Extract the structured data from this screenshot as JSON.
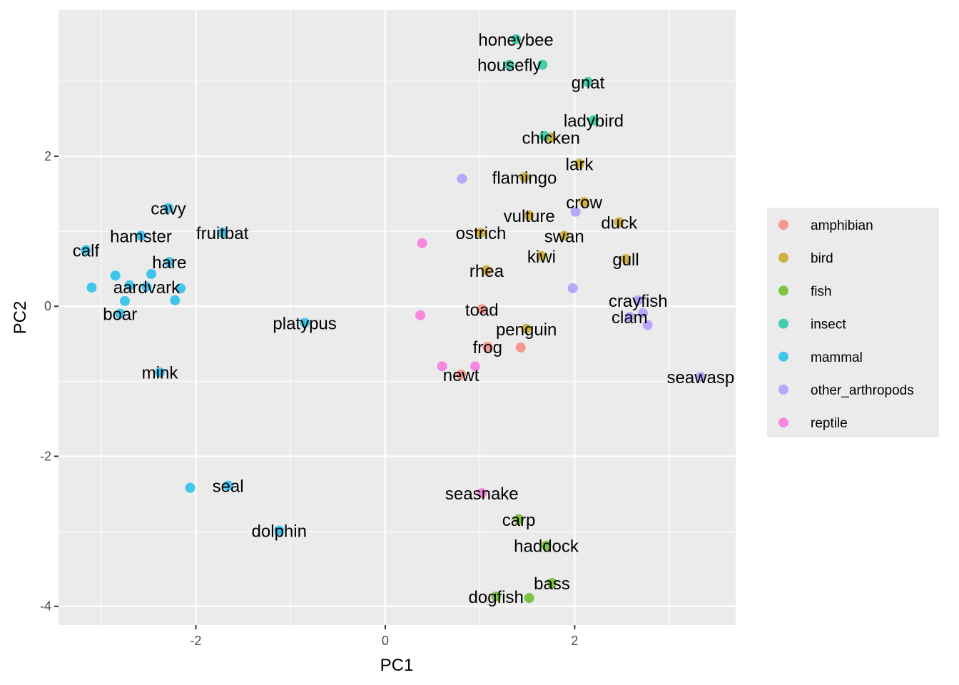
{
  "chart_data": {
    "type": "scatter",
    "title": "",
    "xlabel": "PC1",
    "ylabel": "PC2",
    "xlim": [
      -3.45,
      3.7
    ],
    "ylim": [
      -4.25,
      3.95
    ],
    "xticks": [
      -2,
      0,
      2
    ],
    "xtick_labels": [
      "-2",
      "0",
      "2"
    ],
    "yticks": [
      -4,
      -2,
      0,
      2
    ],
    "ytick_labels": [
      "-4",
      "-2",
      "0",
      "2"
    ],
    "grid": true,
    "legend_position": "right",
    "legend_title": "",
    "series": [
      {
        "name": "amphibian",
        "color": "#F8766D",
        "points": [
          {
            "x": 1.02,
            "y": -0.04,
            "label": "toad"
          },
          {
            "x": 1.08,
            "y": -0.54,
            "label": "frog"
          },
          {
            "x": 0.8,
            "y": -0.91,
            "label": "newt"
          },
          {
            "x": 1.43,
            "y": -0.55,
            "label": ""
          }
        ]
      },
      {
        "name": "bird",
        "color": "#C49A00",
        "points": [
          {
            "x": 1.75,
            "y": 2.25,
            "label": "chicken"
          },
          {
            "x": 2.05,
            "y": 1.9,
            "label": "lark"
          },
          {
            "x": 1.47,
            "y": 1.72,
            "label": "flamingo"
          },
          {
            "x": 2.1,
            "y": 1.39,
            "label": "crow"
          },
          {
            "x": 1.52,
            "y": 1.21,
            "label": "vulture"
          },
          {
            "x": 2.47,
            "y": 1.12,
            "label": "duck"
          },
          {
            "x": 1.01,
            "y": 0.98,
            "label": "ostrich"
          },
          {
            "x": 1.89,
            "y": 0.94,
            "label": "swan"
          },
          {
            "x": 1.65,
            "y": 0.67,
            "label": "kiwi"
          },
          {
            "x": 2.54,
            "y": 0.63,
            "label": "gull"
          },
          {
            "x": 1.07,
            "y": 0.48,
            "label": "rhea"
          },
          {
            "x": 1.49,
            "y": -0.3,
            "label": "penguin"
          }
        ]
      },
      {
        "name": "fish",
        "color": "#53B400",
        "points": [
          {
            "x": 1.41,
            "y": -2.84,
            "label": "carp"
          },
          {
            "x": 1.7,
            "y": -3.19,
            "label": "haddock"
          },
          {
            "x": 1.76,
            "y": -3.69,
            "label": "bass"
          },
          {
            "x": 1.17,
            "y": -3.87,
            "label": "dogfish"
          },
          {
            "x": 1.52,
            "y": -3.89,
            "label": ""
          }
        ]
      },
      {
        "name": "insect",
        "color": "#00C094",
        "points": [
          {
            "x": 1.38,
            "y": 3.56,
            "label": "honeybee"
          },
          {
            "x": 1.31,
            "y": 3.22,
            "label": "housefly"
          },
          {
            "x": 1.66,
            "y": 3.22,
            "label": ""
          },
          {
            "x": 2.14,
            "y": 2.99,
            "label": "gnat"
          },
          {
            "x": 2.2,
            "y": 2.48,
            "label": "ladybird"
          },
          {
            "x": 1.68,
            "y": 2.27,
            "label": ""
          }
        ]
      },
      {
        "name": "mammal",
        "color": "#00B6EB",
        "points": [
          {
            "x": -2.29,
            "y": 1.31,
            "label": "cavy"
          },
          {
            "x": -2.58,
            "y": 0.94,
            "label": "hamster"
          },
          {
            "x": -1.72,
            "y": 0.98,
            "label": "fruitbat"
          },
          {
            "x": -3.16,
            "y": 0.75,
            "label": "calf"
          },
          {
            "x": -2.28,
            "y": 0.59,
            "label": "hare"
          },
          {
            "x": -2.85,
            "y": 0.41,
            "label": ""
          },
          {
            "x": -2.47,
            "y": 0.43,
            "label": ""
          },
          {
            "x": -2.7,
            "y": 0.28,
            "label": ""
          },
          {
            "x": -2.52,
            "y": 0.26,
            "label": "aardvark"
          },
          {
            "x": -3.1,
            "y": 0.25,
            "label": ""
          },
          {
            "x": -2.16,
            "y": 0.24,
            "label": ""
          },
          {
            "x": -2.75,
            "y": 0.07,
            "label": ""
          },
          {
            "x": -2.22,
            "y": 0.08,
            "label": ""
          },
          {
            "x": -2.8,
            "y": -0.1,
            "label": "boar"
          },
          {
            "x": -0.85,
            "y": -0.22,
            "label": "platypus"
          },
          {
            "x": -2.38,
            "y": -0.88,
            "label": "mink"
          },
          {
            "x": -2.06,
            "y": -2.42,
            "label": ""
          },
          {
            "x": -1.66,
            "y": -2.39,
            "label": "seal"
          },
          {
            "x": -1.12,
            "y": -2.99,
            "label": "dolphin"
          }
        ]
      },
      {
        "name": "other_arthropods",
        "color": "#A58AFF",
        "points": [
          {
            "x": 0.81,
            "y": 1.7,
            "label": ""
          },
          {
            "x": 2.01,
            "y": 1.26,
            "label": ""
          },
          {
            "x": 1.98,
            "y": 0.24,
            "label": ""
          },
          {
            "x": 2.67,
            "y": 0.08,
            "label": "crayfish"
          },
          {
            "x": 2.72,
            "y": -0.09,
            "label": ""
          },
          {
            "x": 2.58,
            "y": -0.14,
            "label": "clam"
          },
          {
            "x": 2.77,
            "y": -0.25,
            "label": ""
          },
          {
            "x": 3.33,
            "y": -0.94,
            "label": "seawasp"
          }
        ]
      },
      {
        "name": "reptile",
        "color": "#FB61D7",
        "points": [
          {
            "x": 0.39,
            "y": 0.84,
            "label": ""
          },
          {
            "x": 0.37,
            "y": -0.12,
            "label": ""
          },
          {
            "x": 0.6,
            "y": -0.8,
            "label": ""
          },
          {
            "x": 0.95,
            "y": -0.8,
            "label": ""
          },
          {
            "x": 1.02,
            "y": -2.49,
            "label": "seasnake"
          }
        ]
      }
    ]
  }
}
